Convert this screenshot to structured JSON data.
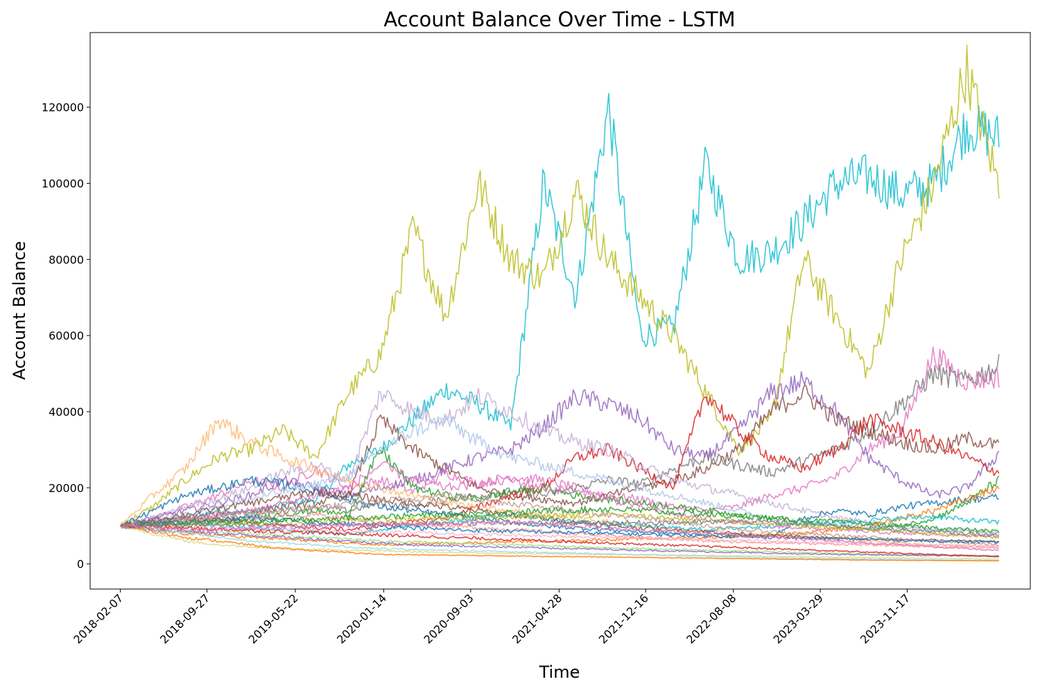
{
  "chart_data": {
    "type": "line",
    "title": "Account Balance Over Time - LSTM",
    "xlabel": "Time",
    "ylabel": "Account Balance",
    "x_start": "2018-02-07",
    "x_end": "2024-07-20",
    "xlim": [
      "2017-11-18",
      "2024-10-12"
    ],
    "ylim": [
      -6600,
      139600
    ],
    "x_ticks": [
      "2018-02-07",
      "2018-09-27",
      "2019-05-22",
      "2020-01-14",
      "2020-09-03",
      "2021-04-28",
      "2021-12-16",
      "2022-08-08",
      "2023-03-29",
      "2023-11-17"
    ],
    "y_ticks": [
      0,
      20000,
      40000,
      60000,
      80000,
      100000,
      120000
    ],
    "y_tick_labels": [
      "0",
      "20000",
      "40000",
      "60000",
      "80000",
      "100000",
      "120000"
    ],
    "grid": false,
    "legend": "none",
    "note_series": "approximately 100 simulated account-balance paths, all starting at 10000",
    "series": [
      {
        "color": "#17becf",
        "values": [
          10000,
          11500,
          12000,
          14000,
          13500,
          15500,
          17000,
          26000,
          30000,
          38000,
          46000,
          42000,
          36000,
          100000,
          70000,
          120000,
          60000,
          62000,
          105000,
          80000,
          82000,
          90000,
          100000,
          102000,
          97000,
          100000,
          115000,
          112000
        ]
      },
      {
        "color": "#bcbd22",
        "values": [
          10000,
          15000,
          22000,
          28000,
          30000,
          35000,
          28000,
          45000,
          55000,
          88000,
          65000,
          100000,
          80000,
          75000,
          98000,
          80000,
          70000,
          60000,
          45000,
          30000,
          38000,
          80000,
          65000,
          50000,
          80000,
          100000,
          130000,
          99000
        ]
      },
      {
        "color": "#e377c2",
        "values": [
          10000,
          12000,
          15000,
          18000,
          22000,
          20000,
          25000,
          20000,
          22000,
          19000,
          24000,
          21000,
          23000,
          22000,
          20000,
          18000,
          17000,
          15000,
          14000,
          15000,
          18000,
          20000,
          23000,
          30000,
          35000,
          55000,
          48000,
          49000
        ]
      },
      {
        "color": "#7f7f7f",
        "values": [
          10000,
          11000,
          12000,
          11500,
          13000,
          14000,
          15000,
          14000,
          16000,
          15000,
          17000,
          18000,
          19000,
          18000,
          20000,
          22000,
          21000,
          25000,
          28000,
          26000,
          24000,
          27000,
          30000,
          35000,
          42000,
          50000,
          48000,
          52000
        ]
      },
      {
        "color": "#9467bd",
        "values": [
          10000,
          12000,
          14000,
          16000,
          18000,
          22000,
          20000,
          18000,
          20000,
          22000,
          25000,
          28000,
          30000,
          36000,
          44000,
          42000,
          38000,
          30000,
          28000,
          35000,
          45000,
          48000,
          40000,
          28000,
          22000,
          18000,
          20000,
          29000
        ]
      },
      {
        "color": "#8c564b",
        "values": [
          10000,
          11000,
          12000,
          13000,
          14000,
          15000,
          16000,
          18000,
          38000,
          30000,
          25000,
          20000,
          18000,
          17000,
          16000,
          18000,
          20000,
          22000,
          25000,
          30000,
          40000,
          45000,
          38000,
          35000,
          32000,
          30000,
          33000,
          31000
        ]
      },
      {
        "color": "#d62728",
        "values": [
          10000,
          10500,
          11000,
          12000,
          11000,
          10000,
          9500,
          9000,
          10000,
          11000,
          12000,
          15000,
          18000,
          20000,
          28000,
          30000,
          25000,
          20000,
          45000,
          35000,
          28000,
          25000,
          30000,
          38000,
          35000,
          32000,
          28000,
          24000
        ]
      },
      {
        "color": "#c5b0d5",
        "values": [
          10000,
          12000,
          15000,
          17000,
          20000,
          24000,
          26000,
          22000,
          45000,
          40000,
          38000,
          44000,
          40000,
          35000,
          32000,
          30000,
          26000,
          22000,
          20000,
          18000,
          16000,
          14000,
          12000,
          11000,
          10000,
          9000,
          8500,
          8000
        ]
      },
      {
        "color": "#ffbb78",
        "values": [
          10000,
          18000,
          25000,
          38000,
          32000,
          28000,
          25000,
          22000,
          20000,
          18000,
          16000,
          15000,
          14000,
          13000,
          12000,
          11000,
          10000,
          9000,
          8500,
          8000,
          7500,
          7000,
          6500,
          6000,
          5500,
          5000,
          4800,
          4500
        ]
      },
      {
        "color": "#1f77b4",
        "values": [
          10000,
          14000,
          18000,
          20000,
          22000,
          21000,
          19000,
          17000,
          15000,
          14000,
          13000,
          12000,
          11000,
          10000,
          9500,
          9000,
          8500,
          8000,
          7800,
          7500,
          7200,
          12000,
          14000,
          13000,
          15000,
          16000,
          17000,
          17500
        ]
      },
      {
        "color": "#2ca02c",
        "values": [
          10000,
          11000,
          12000,
          11000,
          12000,
          13000,
          14000,
          13000,
          30000,
          20000,
          18000,
          17000,
          19000,
          20000,
          18000,
          17000,
          16000,
          15000,
          14000,
          13000,
          12000,
          11000,
          10000,
          9000,
          10000,
          12000,
          16000,
          22000
        ]
      },
      {
        "color": "#ff7f0e",
        "values": [
          10000,
          9000,
          8000,
          7500,
          7000,
          6500,
          6000,
          5500,
          5000,
          5200,
          5400,
          5600,
          5800,
          6000,
          6200,
          6400,
          6600,
          6800,
          7000,
          7200,
          7500,
          8000,
          9000,
          10000,
          12000,
          14000,
          17000,
          20000
        ]
      },
      {
        "color": "#aec7e8",
        "values": [
          10000,
          11000,
          13000,
          15000,
          17000,
          19000,
          21000,
          23000,
          30000,
          35000,
          38000,
          32000,
          28000,
          26000,
          24000,
          22000,
          20000,
          18000,
          16000,
          14000,
          12000,
          11000,
          10500,
          10000,
          9500,
          9000,
          8800,
          8500
        ]
      },
      {
        "color": "#17becf",
        "values": [
          10000,
          10500,
          11000,
          10000,
          9500,
          9000,
          8500,
          8000,
          9000,
          10000,
          11000,
          12000,
          13000,
          12000,
          11000,
          10500,
          10000,
          9500,
          9000,
          9500,
          10000,
          10500,
          11000,
          11500,
          12000,
          12500,
          11500,
          11000
        ]
      },
      {
        "color": "#e377c2",
        "values": [
          10000,
          11000,
          12000,
          13000,
          14000,
          16000,
          18000,
          20000,
          26000,
          22000,
          20000,
          21000,
          22000,
          20000,
          19000,
          17000,
          15000,
          13000,
          12000,
          11000,
          10000,
          9500,
          9000,
          8500,
          8000,
          7800,
          7500,
          7200
        ]
      },
      {
        "color": "#98df8a",
        "values": [
          10000,
          9500,
          9000,
          8500,
          8000,
          7500,
          7000,
          6500,
          6000,
          5800,
          5500,
          5200,
          5000,
          4800,
          4500,
          4200,
          4000,
          3800,
          3600,
          3400,
          3200,
          3000,
          2800,
          2600,
          2500,
          2400,
          2300,
          2200
        ]
      },
      {
        "color": "#ff9896",
        "values": [
          10000,
          10500,
          11000,
          11500,
          12000,
          12500,
          13000,
          12000,
          11000,
          10500,
          10000,
          9500,
          9000,
          8500,
          8000,
          7500,
          7000,
          6500,
          6000,
          5800,
          5600,
          5400,
          5200,
          5000,
          4800,
          4600,
          4400,
          4200
        ]
      },
      {
        "color": "#8c564b",
        "values": [
          10000,
          11500,
          13000,
          14500,
          16000,
          17500,
          19000,
          18000,
          17000,
          16000,
          15000,
          14000,
          13000,
          12000,
          11000,
          10000,
          9500,
          9000,
          8500,
          8000,
          7500,
          7000,
          6800,
          6600,
          6400,
          6200,
          6000,
          5800
        ]
      },
      {
        "color": "#bcbd22",
        "values": [
          10000,
          10200,
          10400,
          10600,
          10800,
          11000,
          11200,
          11400,
          11600,
          11800,
          12000,
          12200,
          12400,
          12600,
          12800,
          13000,
          12500,
          12000,
          11500,
          11000,
          10500,
          10000,
          9500,
          9000,
          8500,
          8000,
          7500,
          7000
        ]
      },
      {
        "color": "#9467bd",
        "values": [
          10000,
          9000,
          8500,
          8000,
          7500,
          7000,
          6500,
          6000,
          5500,
          5000,
          4800,
          4600,
          4400,
          4200,
          4000,
          3800,
          3600,
          3400,
          3200,
          3000,
          2800,
          2600,
          2500,
          2400,
          2300,
          2200,
          2100,
          2000
        ]
      },
      {
        "color": "#c49c94",
        "values": [
          10000,
          10800,
          11600,
          12400,
          13200,
          14000,
          14800,
          15600,
          16400,
          17200,
          18000,
          17000,
          16000,
          15000,
          14000,
          13000,
          12000,
          11000,
          10000,
          9000,
          8500,
          8000,
          7500,
          7000,
          6500,
          6000,
          5500,
          5000
        ]
      },
      {
        "color": "#f7b6d2",
        "values": [
          10000,
          9800,
          9600,
          9400,
          9200,
          9000,
          8800,
          8600,
          8400,
          8200,
          8000,
          7800,
          7600,
          7400,
          7200,
          7000,
          6800,
          6600,
          6400,
          6200,
          6000,
          5800,
          5600,
          5400,
          5200,
          5000,
          4800,
          4600
        ]
      },
      {
        "color": "#dbdb8d",
        "values": [
          10000,
          8000,
          6000,
          5000,
          4500,
          4000,
          3800,
          3600,
          3400,
          3200,
          3000,
          2900,
          2800,
          2700,
          2600,
          2500,
          2400,
          2300,
          2200,
          2100,
          2000,
          1900,
          1800,
          1700,
          1600,
          1500,
          1400,
          1300
        ]
      },
      {
        "color": "#9edae5",
        "values": [
          10000,
          9000,
          8000,
          7000,
          6000,
          5500,
          5000,
          4500,
          4000,
          3800,
          3600,
          3400,
          3200,
          3000,
          2800,
          2600,
          2400,
          2200,
          2000,
          1800,
          1600,
          1500,
          1400,
          1300,
          1200,
          1100,
          1000,
          900
        ]
      },
      {
        "color": "#1f77b4",
        "values": [
          10000,
          10500,
          11000,
          11500,
          12000,
          11500,
          11000,
          10500,
          10000,
          9500,
          9000,
          8800,
          8600,
          8400,
          8200,
          8000,
          7800,
          7600,
          7400,
          7200,
          7000,
          6800,
          6600,
          6400,
          6200,
          6000,
          5800,
          5600
        ]
      },
      {
        "color": "#ff7f0e",
        "values": [
          10000,
          8500,
          7000,
          6000,
          5000,
          4000,
          3500,
          3000,
          2500,
          2400,
          2300,
          2200,
          2100,
          2000,
          1900,
          1800,
          1700,
          1600,
          1500,
          1400,
          1300,
          1200,
          1100,
          1000,
          950,
          900,
          850,
          800
        ]
      },
      {
        "color": "#2ca02c",
        "values": [
          10000,
          10300,
          10600,
          10900,
          11200,
          11500,
          11800,
          12100,
          12400,
          12700,
          13000,
          13300,
          13600,
          13900,
          14200,
          14500,
          14000,
          13500,
          13000,
          12500,
          12000,
          11500,
          11000,
          10500,
          10000,
          9500,
          9000,
          8500
        ]
      },
      {
        "color": "#d62728",
        "values": [
          10000,
          9700,
          9400,
          9100,
          8800,
          8500,
          8200,
          7900,
          7600,
          7300,
          7000,
          6700,
          6400,
          6100,
          5800,
          5500,
          5200,
          4900,
          4600,
          4300,
          4000,
          3700,
          3400,
          3100,
          2800,
          2500,
          2200,
          1900
        ]
      },
      {
        "color": "#7f7f7f",
        "values": [
          10000,
          10200,
          10100,
          10300,
          10200,
          10400,
          10300,
          10500,
          10400,
          10600,
          10500,
          10700,
          10600,
          10800,
          10700,
          10900,
          10800,
          11000,
          10900,
          11100,
          11000,
          10500,
          10000,
          9500,
          9000,
          8500,
          8000,
          7500
        ]
      },
      {
        "color": "#e377c2",
        "values": [
          10000,
          9500,
          9000,
          9200,
          9400,
          9600,
          9800,
          10000,
          10200,
          10400,
          10600,
          10800,
          11000,
          10500,
          10000,
          9500,
          9000,
          8500,
          8000,
          7500,
          7000,
          6500,
          6000,
          5500,
          5000,
          4500,
          4000,
          3500
        ]
      }
    ]
  }
}
